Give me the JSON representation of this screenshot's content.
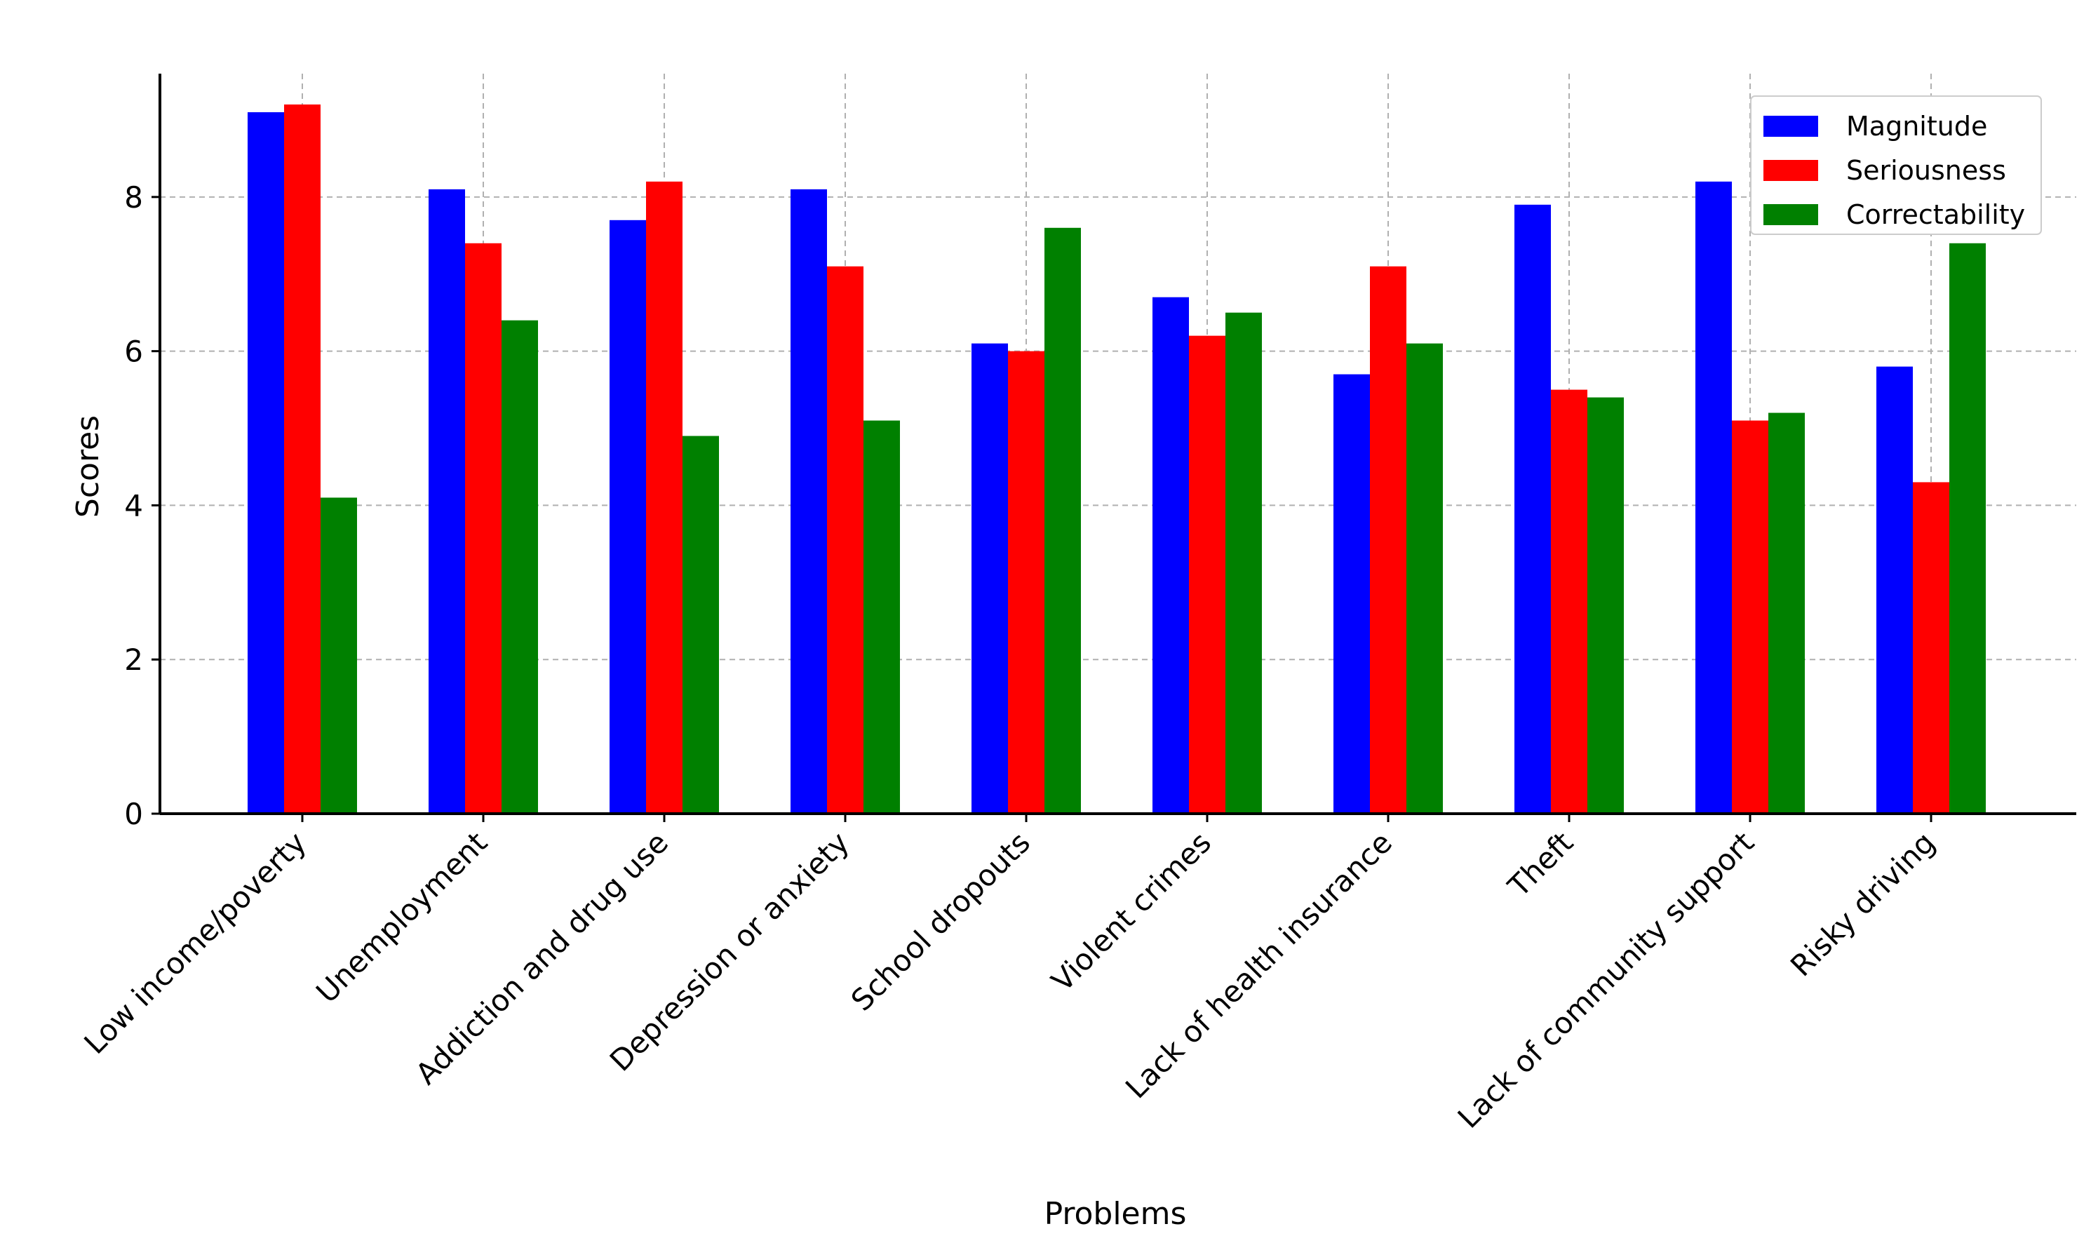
{
  "chart_data": {
    "type": "bar",
    "title": "",
    "xlabel": "Problems",
    "ylabel": "Scores",
    "ylim": [
      0,
      9.6
    ],
    "yticks": [
      0,
      2,
      4,
      6,
      8
    ],
    "grid": true,
    "legend_position": "top-right",
    "categories": [
      "Low income/poverty",
      "Unemployment",
      "Addiction and drug use",
      "Depression or anxiety",
      "School dropouts",
      "Violent crimes",
      "Lack of health insurance",
      "Theft",
      "Lack of community support",
      "Risky driving"
    ],
    "series": [
      {
        "name": "Magnitude",
        "color": "#0000ff",
        "values": [
          9.1,
          8.1,
          7.7,
          8.1,
          6.1,
          6.7,
          5.7,
          7.9,
          8.2,
          5.8
        ]
      },
      {
        "name": "Seriousness",
        "color": "#ff0000",
        "values": [
          9.2,
          7.4,
          8.2,
          7.1,
          6.0,
          6.2,
          7.1,
          5.5,
          5.1,
          4.3
        ]
      },
      {
        "name": "Correctability",
        "color": "#008000",
        "values": [
          4.1,
          6.4,
          4.9,
          5.1,
          7.6,
          6.5,
          6.1,
          5.4,
          5.2,
          7.4
        ]
      }
    ]
  }
}
